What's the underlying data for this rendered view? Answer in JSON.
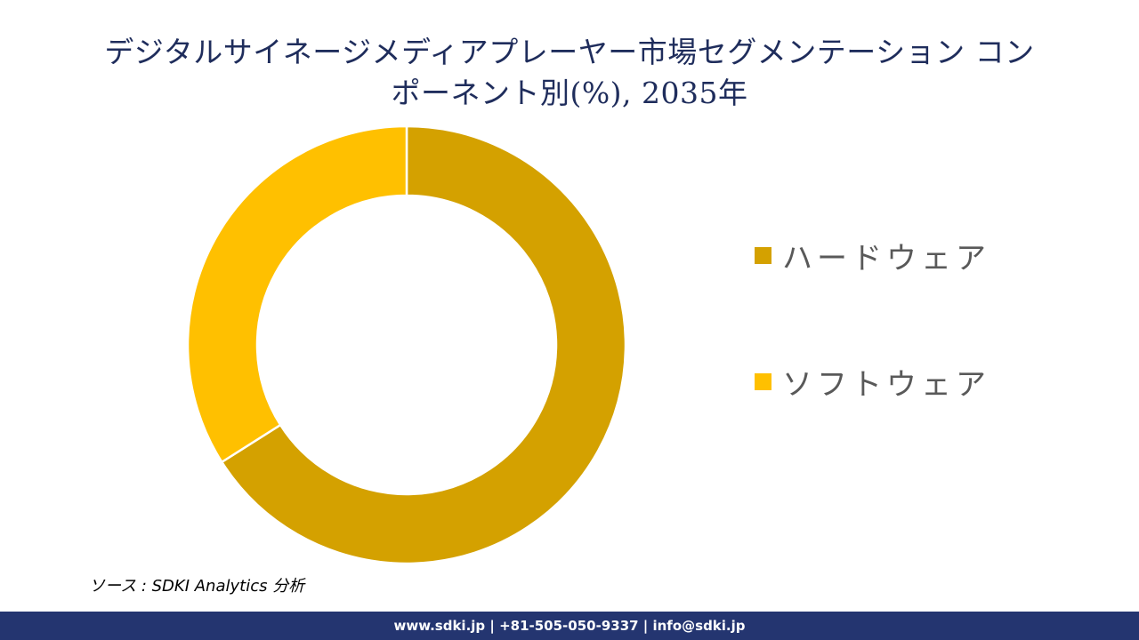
{
  "title": {
    "line1": "デジタルサイネージメディアプレーヤー市場セグメンテーション コン",
    "line2": "ポーネント別(%), 2035年"
  },
  "legend": {
    "items": [
      {
        "label": "ハードウェア",
        "color": "#D4A100"
      },
      {
        "label": "ソフトウェア",
        "color": "#FFC000"
      }
    ]
  },
  "source": "ソース : SDKI Analytics  分析",
  "footer": "www.sdki.jp | +81-505-050-9337 | info@sdki.jp",
  "chart_data": {
    "type": "pie",
    "subtype": "donut",
    "title": "デジタルサイネージメディアプレーヤー市場セグメンテーション コンポーネント別(%), 2035年",
    "categories": [
      "ハードウェア",
      "ソフトウェア"
    ],
    "values": [
      66,
      34
    ],
    "colors": [
      "#D4A100",
      "#FFC000"
    ],
    "legend_position": "right",
    "data_labels": false
  }
}
